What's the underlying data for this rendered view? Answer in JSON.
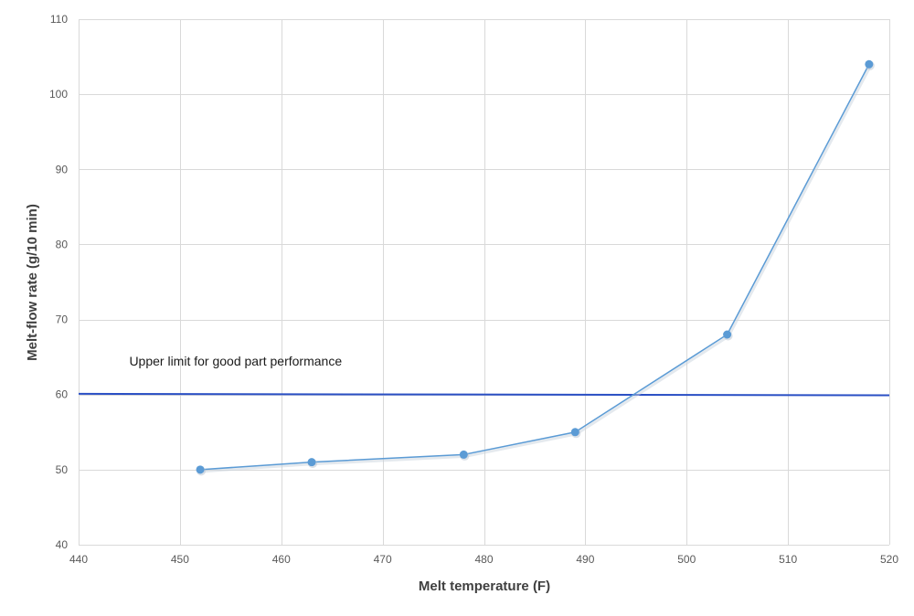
{
  "chart_data": {
    "type": "line",
    "title": "",
    "xlabel": "Melt temperature (F)",
    "ylabel": "Melt-flow rate (g/10 min)",
    "xlim": [
      440,
      520
    ],
    "ylim": [
      40,
      110
    ],
    "xticks": [
      440,
      450,
      460,
      470,
      480,
      490,
      500,
      510,
      520
    ],
    "yticks": [
      40,
      50,
      60,
      70,
      80,
      90,
      100,
      110
    ],
    "grid": true,
    "legend": "none",
    "series": [
      {
        "x": [
          452,
          463,
          478,
          489,
          504,
          518
        ],
        "y": [
          50,
          51,
          52,
          55,
          68,
          104
        ],
        "color": "#5b9bd5",
        "markers": true
      }
    ],
    "reference_line": {
      "y_start": 60.1,
      "y_end": 59.9,
      "color": "#2a4fc4"
    },
    "annotation": {
      "text": "Upper limit for good part performance",
      "x": 445,
      "y": 64.5
    },
    "colors": {
      "grid": "#d9d9d9",
      "tick_text": "#595959",
      "axis_title": "#404040"
    }
  }
}
